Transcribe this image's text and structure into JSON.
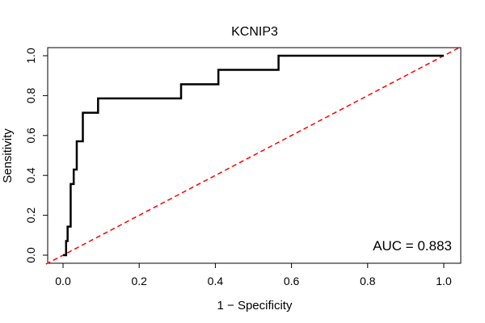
{
  "chart_data": {
    "type": "line",
    "title": "KCNIP3",
    "xlabel": "1 − Specificity",
    "ylabel": "Sensitivity",
    "xlim": [
      0,
      1
    ],
    "ylim": [
      0,
      1
    ],
    "grid": false,
    "x_ticks": [
      "0.0",
      "0.2",
      "0.4",
      "0.6",
      "0.8",
      "1.0"
    ],
    "y_ticks": [
      "0.0",
      "0.2",
      "0.4",
      "0.6",
      "0.8",
      "1.0"
    ],
    "series": [
      {
        "x": [
          0.0,
          0.008,
          0.008,
          0.012,
          0.012,
          0.02,
          0.02,
          0.028,
          0.028,
          0.036,
          0.036,
          0.044,
          0.044,
          0.052,
          0.052,
          0.092,
          0.092,
          0.31,
          0.31,
          0.408,
          0.408,
          0.566,
          0.566,
          1.0
        ],
        "y": [
          0.0,
          0.0,
          0.071,
          0.071,
          0.143,
          0.143,
          0.357,
          0.357,
          0.429,
          0.429,
          0.571,
          0.571,
          0.571,
          0.571,
          0.714,
          0.714,
          0.786,
          0.786,
          0.857,
          0.857,
          0.929,
          0.929,
          1.0,
          1.0
        ],
        "color": "#000000"
      },
      {
        "x": [
          0,
          1
        ],
        "y": [
          0,
          1
        ],
        "color": "#ff0000",
        "style": "dashed"
      }
    ],
    "annotations": [
      {
        "text": "AUC = 0.883",
        "placement": "bottom-right"
      }
    ]
  }
}
